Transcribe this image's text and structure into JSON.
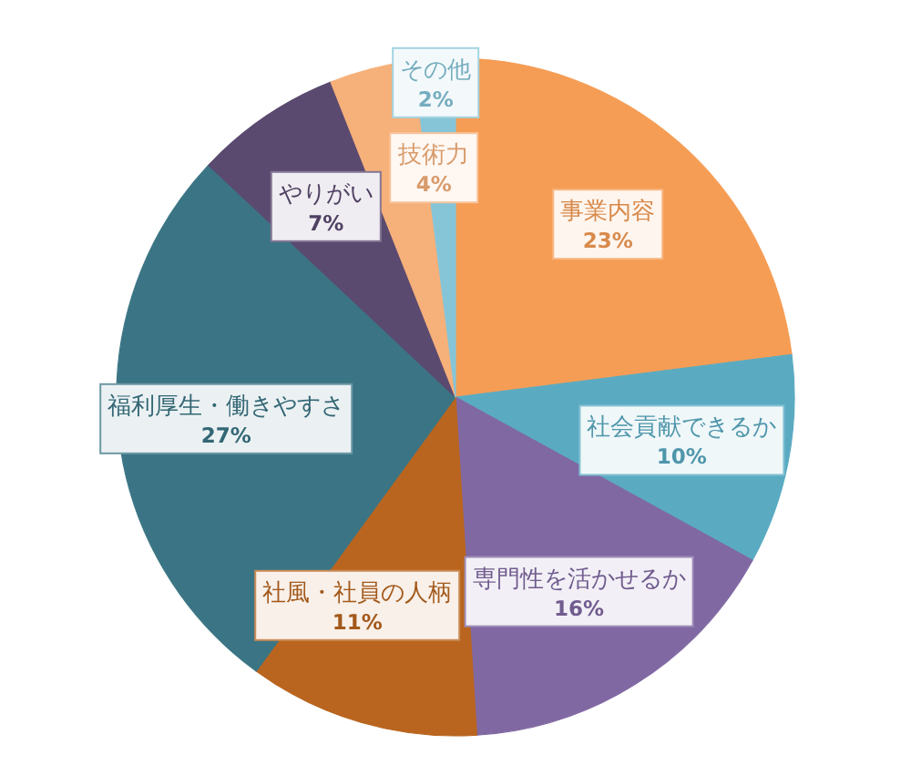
{
  "chart_data": {
    "type": "pie",
    "categories": [
      "事業内容",
      "社会貢献できるか",
      "専門性を活かせるか",
      "社風・社員の人柄",
      "福利厚生・働きやすさ",
      "やりがい",
      "技術力",
      "その他"
    ],
    "values": [
      23,
      10,
      16,
      11,
      27,
      7,
      4,
      2
    ],
    "value_labels": [
      "23%",
      "10%",
      "16%",
      "11%",
      "27%",
      "7%",
      "4%",
      "2%"
    ],
    "colors": [
      "#f59d55",
      "#5aabc2",
      "#8068a3",
      "#b9651f",
      "#3b7585",
      "#5b4a70",
      "#f6b07a",
      "#86c5d8"
    ]
  }
}
